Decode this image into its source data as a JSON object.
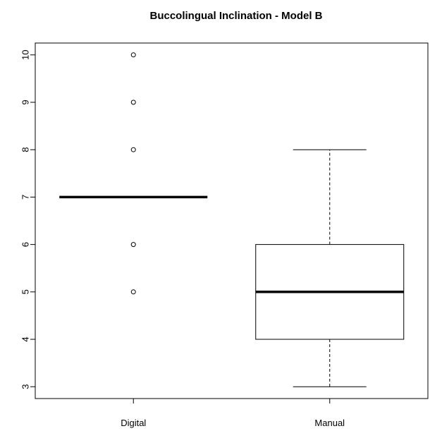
{
  "chart_data": {
    "type": "boxplot",
    "title": "Buccolingual Inclination - Model B",
    "xlabel": "",
    "ylabel": "",
    "ylim": [
      2.75,
      10.25
    ],
    "yticks": [
      "3",
      "4",
      "5",
      "6",
      "7",
      "8",
      "9",
      "10"
    ],
    "categories": [
      "Digital",
      "Manual"
    ],
    "boxes": [
      {
        "category": "Digital",
        "whisker_low": 7,
        "q1": 7,
        "median": 7,
        "q3": 7,
        "whisker_high": 7,
        "outliers": [
          5,
          6,
          8,
          9,
          10
        ]
      },
      {
        "category": "Manual",
        "whisker_low": 3,
        "q1": 4,
        "median": 5,
        "q3": 6,
        "whisker_high": 8,
        "outliers": []
      }
    ],
    "colors": {
      "box_fill": "#ffffff",
      "stroke": "#000000"
    }
  }
}
